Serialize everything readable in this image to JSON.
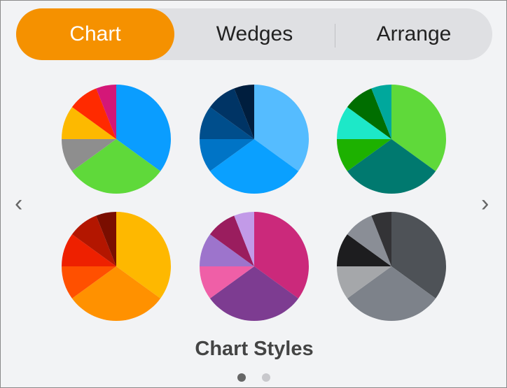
{
  "tabs": [
    {
      "label": "Chart",
      "active": true
    },
    {
      "label": "Wedges",
      "active": false
    },
    {
      "label": "Arrange",
      "active": false
    }
  ],
  "accent": "#f59100",
  "section_title": "Chart Styles",
  "nav": {
    "prev_icon": "chevron-left-icon",
    "next_icon": "chevron-right-icon",
    "prev": "‹",
    "next": "›"
  },
  "page_dots": {
    "count": 2,
    "current": 1
  },
  "pie_values": [
    35,
    30,
    10,
    10,
    9,
    6
  ],
  "styles": [
    {
      "colors": [
        "#0a9dff",
        "#5fd93a",
        "#8e8e8e",
        "#fdb900",
        "#ff2a00",
        "#d41778"
      ]
    },
    {
      "colors": [
        "#55bcff",
        "#0aa0ff",
        "#0074c6",
        "#004e8c",
        "#003465",
        "#001e3e"
      ]
    },
    {
      "colors": [
        "#5fd93a",
        "#00796f",
        "#1db100",
        "#1de8c8",
        "#006e00",
        "#00a89c"
      ]
    },
    {
      "colors": [
        "#feb800",
        "#ff9100",
        "#ff5000",
        "#ee2000",
        "#b31600",
        "#7a0e00"
      ]
    },
    {
      "colors": [
        "#cb297b",
        "#7d3c91",
        "#ef5fa7",
        "#9d74cc",
        "#9a1d5e",
        "#c29ae8"
      ]
    },
    {
      "colors": [
        "#4e5257",
        "#7d828a",
        "#a5a7aa",
        "#1d1d1f",
        "#8a8e96",
        "#333336"
      ]
    }
  ]
}
